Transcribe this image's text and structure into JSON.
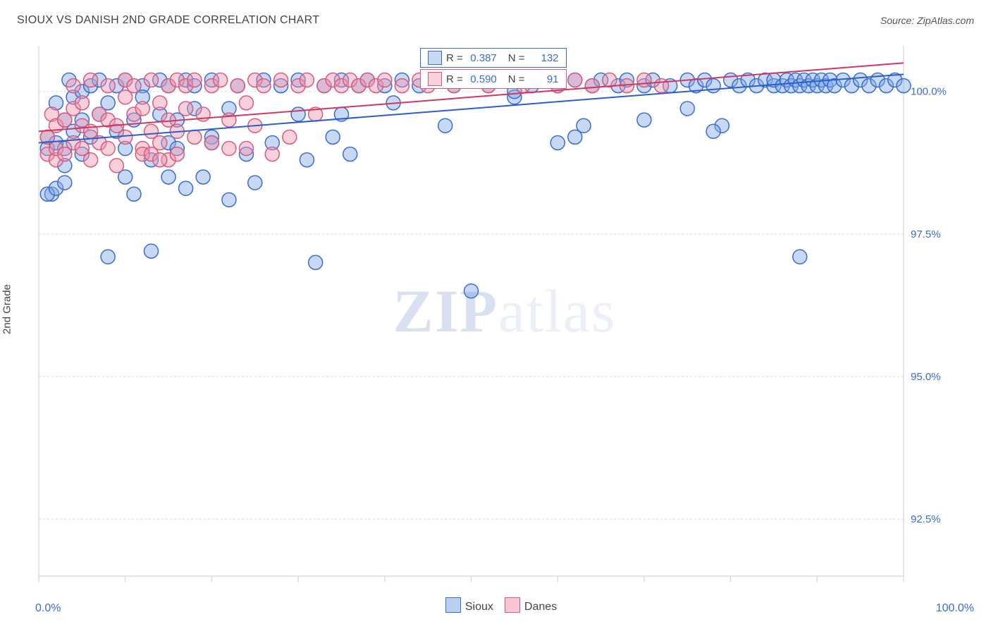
{
  "title": "SIOUX VS DANISH 2ND GRADE CORRELATION CHART",
  "source": "Source: ZipAtlas.com",
  "watermark_main": "ZIP",
  "watermark_sub": "atlas",
  "yaxis_title": "2nd Grade",
  "chart": {
    "type": "scatter",
    "xlim": [
      0,
      100
    ],
    "ylim": [
      91.5,
      100.8
    ],
    "xtick_positions": [
      0,
      10,
      20,
      30,
      40,
      50,
      60,
      70,
      80,
      90,
      100
    ],
    "xtick_labels": {
      "0": "0.0%",
      "100": "100.0%"
    },
    "ytick_positions": [
      92.5,
      95.0,
      97.5,
      100.0
    ],
    "ytick_labels": [
      "92.5%",
      "95.0%",
      "97.5%",
      "100.0%"
    ],
    "grid_color": "#d8d8d8",
    "grid_dash": "3,3",
    "axis_color": "#cccccc",
    "axis_label_color": "#3a6cd0",
    "background_color": "#ffffff",
    "marker_radius": 10,
    "marker_stroke_width": 1.5,
    "line_width": 2,
    "series": [
      {
        "name": "Sioux",
        "fill": "rgba(130,170,230,0.45)",
        "stroke": "#3a6cd0",
        "line_color": "#2b60c8",
        "r": 0.387,
        "n": 132,
        "trend": {
          "x1": 0,
          "y1": 99.1,
          "x2": 100,
          "y2": 100.3
        },
        "points": [
          [
            1,
            99.2
          ],
          [
            1,
            99.0
          ],
          [
            1.5,
            98.2
          ],
          [
            2,
            99.8
          ],
          [
            2,
            99.1
          ],
          [
            3,
            99.5
          ],
          [
            3,
            99.0
          ],
          [
            3,
            98.7
          ],
          [
            3.5,
            100.2
          ],
          [
            4,
            99.9
          ],
          [
            4,
            99.3
          ],
          [
            5,
            100.0
          ],
          [
            5,
            99.5
          ],
          [
            5,
            98.9
          ],
          [
            6,
            100.1
          ],
          [
            6,
            99.2
          ],
          [
            7,
            99.6
          ],
          [
            7,
            100.2
          ],
          [
            8,
            99.8
          ],
          [
            8,
            97.1
          ],
          [
            9,
            100.1
          ],
          [
            9,
            99.3
          ],
          [
            10,
            100.2
          ],
          [
            10,
            99.0
          ],
          [
            10,
            98.5
          ],
          [
            11,
            99.5
          ],
          [
            11,
            98.2
          ],
          [
            12,
            100.1
          ],
          [
            12,
            99.9
          ],
          [
            13,
            97.2
          ],
          [
            13,
            98.8
          ],
          [
            14,
            99.6
          ],
          [
            14,
            100.2
          ],
          [
            15,
            100.1
          ],
          [
            15,
            99.1
          ],
          [
            15,
            98.5
          ],
          [
            16,
            99.5
          ],
          [
            16,
            99.0
          ],
          [
            17,
            100.2
          ],
          [
            17,
            98.3
          ],
          [
            18,
            99.7
          ],
          [
            18,
            100.1
          ],
          [
            19,
            98.5
          ],
          [
            20,
            99.2
          ],
          [
            20,
            100.2
          ],
          [
            22,
            98.1
          ],
          [
            22,
            99.7
          ],
          [
            23,
            100.1
          ],
          [
            24,
            98.9
          ],
          [
            25,
            98.4
          ],
          [
            26,
            100.2
          ],
          [
            27,
            99.1
          ],
          [
            28,
            100.1
          ],
          [
            30,
            99.6
          ],
          [
            30,
            100.2
          ],
          [
            31,
            98.8
          ],
          [
            32,
            97.0
          ],
          [
            33,
            100.1
          ],
          [
            34,
            99.2
          ],
          [
            35,
            100.2
          ],
          [
            36,
            98.9
          ],
          [
            37,
            100.1
          ],
          [
            38,
            100.2
          ],
          [
            40,
            100.1
          ],
          [
            41,
            99.8
          ],
          [
            42,
            100.2
          ],
          [
            44,
            100.1
          ],
          [
            45,
            100.2
          ],
          [
            47,
            99.4
          ],
          [
            48,
            100.1
          ],
          [
            50,
            96.5
          ],
          [
            50,
            100.2
          ],
          [
            52,
            100.1
          ],
          [
            54,
            100.2
          ],
          [
            55,
            99.9
          ],
          [
            57,
            100.1
          ],
          [
            58,
            100.2
          ],
          [
            60,
            99.1
          ],
          [
            60,
            100.1
          ],
          [
            62,
            100.2
          ],
          [
            63,
            99.4
          ],
          [
            64,
            100.1
          ],
          [
            65,
            100.2
          ],
          [
            67,
            100.1
          ],
          [
            68,
            100.2
          ],
          [
            70,
            100.1
          ],
          [
            71,
            100.2
          ],
          [
            73,
            100.1
          ],
          [
            75,
            99.7
          ],
          [
            75,
            100.2
          ],
          [
            76,
            100.1
          ],
          [
            77,
            100.2
          ],
          [
            78,
            100.1
          ],
          [
            79,
            99.4
          ],
          [
            80,
            100.2
          ],
          [
            81,
            100.1
          ],
          [
            82,
            100.2
          ],
          [
            83,
            100.1
          ],
          [
            84,
            100.2
          ],
          [
            85,
            100.1
          ],
          [
            85,
            100.2
          ],
          [
            86,
            100.1
          ],
          [
            86.5,
            100.2
          ],
          [
            87,
            100.1
          ],
          [
            87.5,
            100.2
          ],
          [
            88,
            100.1
          ],
          [
            88.5,
            100.2
          ],
          [
            89,
            100.1
          ],
          [
            89.5,
            100.2
          ],
          [
            90,
            100.1
          ],
          [
            90.5,
            100.2
          ],
          [
            91,
            100.1
          ],
          [
            91.5,
            100.2
          ],
          [
            92,
            100.1
          ],
          [
            93,
            100.2
          ],
          [
            94,
            100.1
          ],
          [
            95,
            100.2
          ],
          [
            96,
            100.1
          ],
          [
            97,
            100.2
          ],
          [
            98,
            100.1
          ],
          [
            99,
            100.2
          ],
          [
            100,
            100.1
          ],
          [
            62,
            99.2
          ],
          [
            70,
            99.5
          ],
          [
            78,
            99.3
          ],
          [
            88,
            97.1
          ],
          [
            1,
            98.2
          ],
          [
            2,
            98.3
          ],
          [
            3,
            98.4
          ],
          [
            20,
            99.1
          ],
          [
            35,
            99.6
          ],
          [
            55,
            100.0
          ]
        ]
      },
      {
        "name": "Danes",
        "fill": "rgba(240,150,175,0.45)",
        "stroke": "#d45c7c",
        "line_color": "#d03860",
        "r": 0.59,
        "n": 91,
        "trend": {
          "x1": 0,
          "y1": 99.3,
          "x2": 100,
          "y2": 100.5
        },
        "points": [
          [
            1,
            98.9
          ],
          [
            1,
            99.2
          ],
          [
            1.5,
            99.6
          ],
          [
            2,
            98.8
          ],
          [
            2,
            99.4
          ],
          [
            2,
            99.0
          ],
          [
            3,
            98.9
          ],
          [
            3,
            99.5
          ],
          [
            4,
            99.1
          ],
          [
            4,
            99.7
          ],
          [
            4,
            100.1
          ],
          [
            5,
            99.0
          ],
          [
            5,
            99.4
          ],
          [
            5,
            99.8
          ],
          [
            6,
            98.8
          ],
          [
            6,
            99.3
          ],
          [
            6,
            100.2
          ],
          [
            7,
            99.1
          ],
          [
            7,
            99.6
          ],
          [
            8,
            99.0
          ],
          [
            8,
            99.5
          ],
          [
            8,
            100.1
          ],
          [
            9,
            98.7
          ],
          [
            9,
            99.4
          ],
          [
            10,
            99.9
          ],
          [
            10,
            100.2
          ],
          [
            10,
            99.2
          ],
          [
            11,
            99.6
          ],
          [
            11,
            100.1
          ],
          [
            12,
            99.0
          ],
          [
            12,
            99.7
          ],
          [
            12,
            98.9
          ],
          [
            13,
            99.3
          ],
          [
            13,
            100.2
          ],
          [
            14,
            99.8
          ],
          [
            14,
            99.1
          ],
          [
            15,
            100.1
          ],
          [
            15,
            99.5
          ],
          [
            15,
            98.8
          ],
          [
            16,
            100.2
          ],
          [
            16,
            99.3
          ],
          [
            17,
            99.7
          ],
          [
            17,
            100.1
          ],
          [
            18,
            99.2
          ],
          [
            18,
            100.2
          ],
          [
            19,
            99.6
          ],
          [
            20,
            100.1
          ],
          [
            20,
            99.1
          ],
          [
            21,
            100.2
          ],
          [
            22,
            99.5
          ],
          [
            23,
            100.1
          ],
          [
            24,
            99.0
          ],
          [
            25,
            100.2
          ],
          [
            25,
            99.4
          ],
          [
            26,
            100.1
          ],
          [
            27,
            98.9
          ],
          [
            28,
            100.2
          ],
          [
            29,
            99.2
          ],
          [
            30,
            100.1
          ],
          [
            31,
            100.2
          ],
          [
            32,
            99.6
          ],
          [
            33,
            100.1
          ],
          [
            34,
            100.2
          ],
          [
            35,
            100.1
          ],
          [
            36,
            100.2
          ],
          [
            37,
            100.1
          ],
          [
            38,
            100.2
          ],
          [
            39,
            100.1
          ],
          [
            40,
            100.2
          ],
          [
            42,
            100.1
          ],
          [
            44,
            100.2
          ],
          [
            45,
            100.1
          ],
          [
            47,
            100.2
          ],
          [
            48,
            100.1
          ],
          [
            50,
            100.2
          ],
          [
            52,
            100.1
          ],
          [
            54,
            100.2
          ],
          [
            56,
            100.1
          ],
          [
            58,
            100.2
          ],
          [
            60,
            100.1
          ],
          [
            62,
            100.2
          ],
          [
            64,
            100.1
          ],
          [
            66,
            100.2
          ],
          [
            68,
            100.1
          ],
          [
            70,
            100.2
          ],
          [
            72,
            100.1
          ],
          [
            13,
            98.9
          ],
          [
            14,
            98.8
          ],
          [
            16,
            98.9
          ],
          [
            22,
            99.0
          ],
          [
            24,
            99.8
          ]
        ]
      }
    ]
  },
  "legend": {
    "items": [
      {
        "label": "Sioux",
        "fill": "rgba(130,170,230,0.55)",
        "stroke": "#3a6cd0"
      },
      {
        "label": "Danes",
        "fill": "rgba(240,150,175,0.55)",
        "stroke": "#d45c7c"
      }
    ]
  },
  "stat_boxes": [
    {
      "series": 0,
      "r_label": "R =",
      "r_value": "0.387",
      "n_label": "N =",
      "n_value": "132"
    },
    {
      "series": 1,
      "r_label": "R =",
      "r_value": "0.590",
      "n_label": "N =",
      "n_value": "91"
    }
  ]
}
